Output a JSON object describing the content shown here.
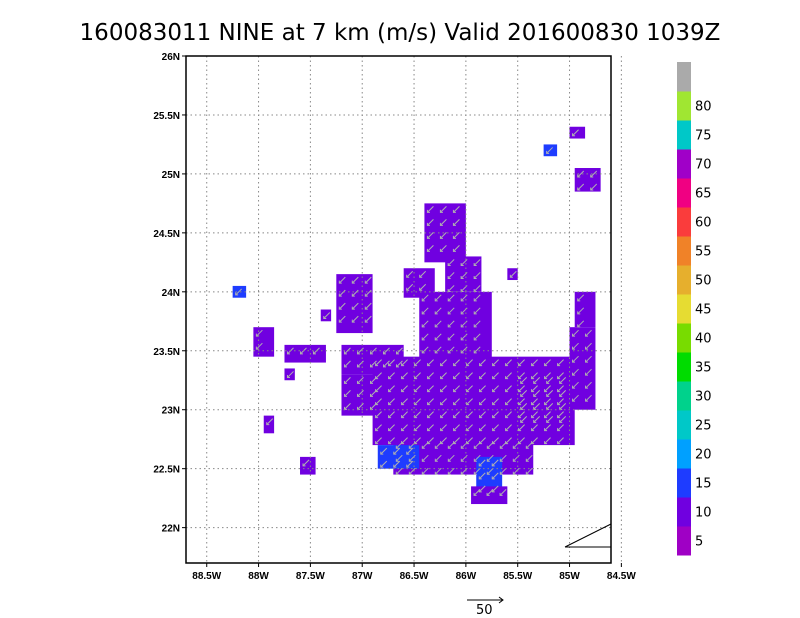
{
  "chart_data": {
    "type": "heatmap",
    "title": "160083011 NINE at 7 km (m/s) Valid 201600830 1039Z",
    "x_ticks": [
      "88.5W",
      "88W",
      "87.5W",
      "87W",
      "86.5W",
      "86W",
      "85.5W",
      "85W",
      "84.5W"
    ],
    "y_ticks": [
      "22N",
      "22.5N",
      "23N",
      "23.5N",
      "24N",
      "24.5N",
      "25N",
      "25.5N",
      "26N"
    ],
    "xlim": [
      -88.7,
      -84.6
    ],
    "ylim": [
      21.7,
      26.0
    ],
    "grid": true,
    "colorbar": {
      "labels": [
        "5",
        "10",
        "15",
        "20",
        "25",
        "30",
        "35",
        "40",
        "45",
        "50",
        "55",
        "60",
        "65",
        "70",
        "75",
        "80"
      ],
      "colors": [
        "#9f00c5",
        "#7000e0",
        "#1e3cff",
        "#00a0ff",
        "#00c8c8",
        "#00d28c",
        "#00dc00",
        "#78dc00",
        "#e6dc32",
        "#e6af2d",
        "#f08228",
        "#fa3c3c",
        "#f00082",
        "#a000c8",
        "#00c8c8",
        "#a0e632",
        "#aaaaaa"
      ]
    },
    "reference_vector": {
      "label": "50",
      "value": 50
    },
    "field_regions": [
      {
        "lon": [
          -86.4,
          -86.0
        ],
        "lat": [
          24.25,
          24.75
        ],
        "value": 7
      },
      {
        "lon": [
          -86.2,
          -85.85
        ],
        "lat": [
          24.0,
          24.3
        ],
        "value": 7
      },
      {
        "lon": [
          -86.6,
          -86.3
        ],
        "lat": [
          23.95,
          24.2
        ],
        "value": 7
      },
      {
        "lon": [
          -86.45,
          -85.75
        ],
        "lat": [
          23.4,
          24.0
        ],
        "value": 7
      },
      {
        "lon": [
          -86.9,
          -84.95
        ],
        "lat": [
          22.7,
          23.45
        ],
        "value": 7
      },
      {
        "lon": [
          -87.2,
          -86.6
        ],
        "lat": [
          23.3,
          23.55
        ],
        "value": 6
      },
      {
        "lon": [
          -87.2,
          -86.8
        ],
        "lat": [
          22.95,
          23.3
        ],
        "value": 6
      },
      {
        "lon": [
          -87.25,
          -86.9
        ],
        "lat": [
          23.65,
          24.15
        ],
        "value": 6
      },
      {
        "lon": [
          -86.7,
          -85.35
        ],
        "lat": [
          22.45,
          22.75
        ],
        "value": 7
      },
      {
        "lon": [
          -86.85,
          -86.45
        ],
        "lat": [
          22.5,
          22.7
        ],
        "value": 11
      },
      {
        "lon": [
          -85.9,
          -85.65
        ],
        "lat": [
          22.3,
          22.6
        ],
        "value": 11
      },
      {
        "lon": [
          -85.95,
          -85.6
        ],
        "lat": [
          22.2,
          22.35
        ],
        "value": 7
      },
      {
        "lon": [
          -85.5,
          -85.0
        ],
        "lat": [
          22.9,
          23.3
        ],
        "value": 9
      },
      {
        "lon": [
          -85.0,
          -84.75
        ],
        "lat": [
          23.0,
          23.7
        ],
        "value": 7
      },
      {
        "lon": [
          -84.95,
          -84.75
        ],
        "lat": [
          23.7,
          24.0
        ],
        "value": 7
      },
      {
        "lon": [
          -87.75,
          -87.35
        ],
        "lat": [
          23.4,
          23.55
        ],
        "value": 6
      },
      {
        "lon": [
          -88.05,
          -87.85
        ],
        "lat": [
          23.45,
          23.7
        ],
        "value": 6
      },
      {
        "lon": [
          -88.25,
          -88.12
        ],
        "lat": [
          23.95,
          24.05
        ],
        "value": 10
      },
      {
        "lon": [
          -87.75,
          -87.65
        ],
        "lat": [
          23.25,
          23.35
        ],
        "value": 6
      },
      {
        "lon": [
          -87.95,
          -87.85
        ],
        "lat": [
          22.8,
          22.95
        ],
        "value": 6
      },
      {
        "lon": [
          -87.6,
          -87.45
        ],
        "lat": [
          22.45,
          22.6
        ],
        "value": 6
      },
      {
        "lon": [
          -85.25,
          -85.12
        ],
        "lat": [
          25.15,
          25.25
        ],
        "value": 11
      },
      {
        "lon": [
          -85.0,
          -84.85
        ],
        "lat": [
          25.3,
          25.4
        ],
        "value": 6
      },
      {
        "lon": [
          -84.95,
          -84.7
        ],
        "lat": [
          24.85,
          25.05
        ],
        "value": 6
      },
      {
        "lon": [
          -85.6,
          -85.5
        ],
        "lat": [
          24.1,
          24.2
        ],
        "value": 6
      },
      {
        "lon": [
          -87.4,
          -87.3
        ],
        "lat": [
          23.75,
          23.85
        ],
        "value": 6
      }
    ]
  }
}
